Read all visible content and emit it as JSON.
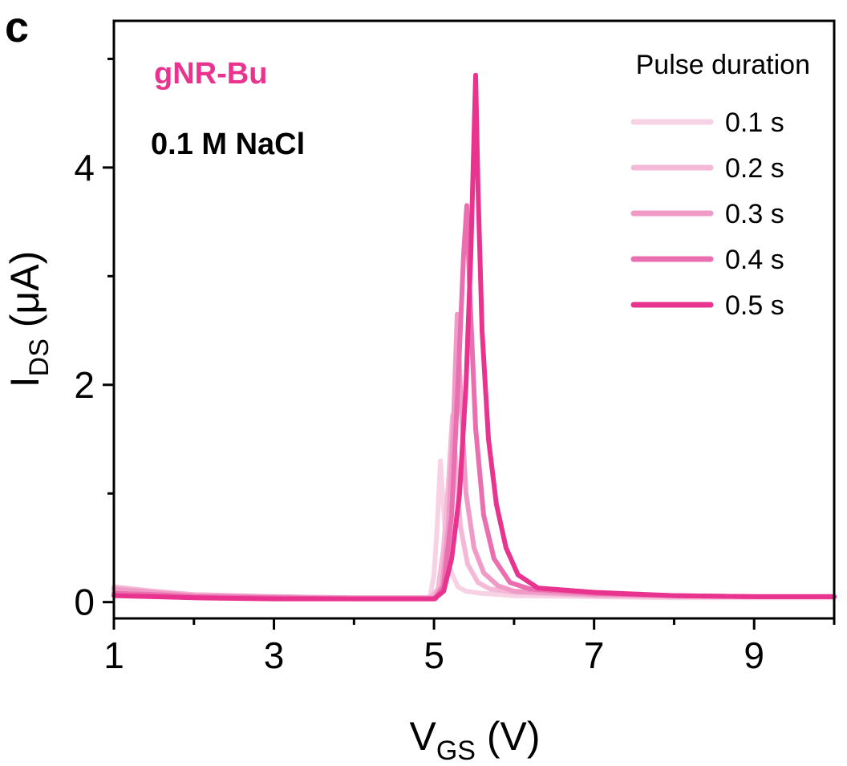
{
  "panel_label": "c",
  "annotations": {
    "material": "gNR-Bu",
    "condition": "0.1 M NaCl"
  },
  "colors": {
    "material_text": "#e8348f",
    "axes": "#000000"
  },
  "chart_data": {
    "type": "line",
    "title": "",
    "xlabel_main": "V",
    "xlabel_sub": "GS",
    "xlabel_unit": " (V)",
    "ylabel_main": "I",
    "ylabel_sub": "DS",
    "ylabel_unit": " (μA)",
    "xlim": [
      1,
      10
    ],
    "ylim": [
      -0.15,
      5.35
    ],
    "x_ticks": [
      1,
      3,
      5,
      7,
      9
    ],
    "x_tick_labels": [
      "1",
      "3",
      "5",
      "7",
      "9"
    ],
    "x_minor_ticks": [
      2,
      4,
      6,
      8,
      10
    ],
    "y_ticks": [
      0,
      2,
      4
    ],
    "y_tick_labels": [
      "0",
      "2",
      "4"
    ],
    "y_minor_ticks": [
      1,
      3,
      5
    ],
    "grid": false,
    "legend_title": "Pulse duration",
    "legend_position": "top-right",
    "series": [
      {
        "name": "0.1 s",
        "color": "#f7d2e4",
        "points": [
          [
            1,
            0.1
          ],
          [
            1.5,
            0.08
          ],
          [
            2,
            0.06
          ],
          [
            3,
            0.04
          ],
          [
            4,
            0.03
          ],
          [
            4.85,
            0.03
          ],
          [
            4.95,
            0.05
          ],
          [
            5.0,
            0.25
          ],
          [
            5.04,
            0.7
          ],
          [
            5.08,
            1.3
          ],
          [
            5.11,
            0.95
          ],
          [
            5.15,
            0.55
          ],
          [
            5.2,
            0.3
          ],
          [
            5.3,
            0.14
          ],
          [
            5.4,
            0.1
          ],
          [
            5.6,
            0.08
          ],
          [
            6,
            0.06
          ],
          [
            7,
            0.05
          ],
          [
            8,
            0.04
          ],
          [
            9,
            0.04
          ],
          [
            10,
            0.04
          ]
        ]
      },
      {
        "name": "0.2 s",
        "color": "#f5b9d8",
        "points": [
          [
            1,
            0.14
          ],
          [
            1.5,
            0.1
          ],
          [
            2,
            0.07
          ],
          [
            3,
            0.05
          ],
          [
            4,
            0.04
          ],
          [
            4.95,
            0.04
          ],
          [
            5.05,
            0.12
          ],
          [
            5.12,
            0.5
          ],
          [
            5.18,
            1.1
          ],
          [
            5.23,
            1.72
          ],
          [
            5.27,
            1.3
          ],
          [
            5.33,
            0.7
          ],
          [
            5.42,
            0.35
          ],
          [
            5.55,
            0.18
          ],
          [
            5.7,
            0.12
          ],
          [
            6,
            0.09
          ],
          [
            7,
            0.06
          ],
          [
            8,
            0.05
          ],
          [
            9,
            0.05
          ],
          [
            10,
            0.05
          ]
        ]
      },
      {
        "name": "0.3 s",
        "color": "#f09ac8",
        "points": [
          [
            1,
            0.12
          ],
          [
            1.5,
            0.09
          ],
          [
            2,
            0.06
          ],
          [
            3,
            0.05
          ],
          [
            4,
            0.04
          ],
          [
            5.0,
            0.04
          ],
          [
            5.1,
            0.15
          ],
          [
            5.18,
            0.7
          ],
          [
            5.24,
            1.6
          ],
          [
            5.29,
            2.65
          ],
          [
            5.34,
            1.8
          ],
          [
            5.4,
            1.0
          ],
          [
            5.5,
            0.5
          ],
          [
            5.62,
            0.27
          ],
          [
            5.8,
            0.15
          ],
          [
            6,
            0.1
          ],
          [
            7,
            0.07
          ],
          [
            8,
            0.06
          ],
          [
            9,
            0.05
          ],
          [
            10,
            0.05
          ]
        ]
      },
      {
        "name": "0.4 s",
        "color": "#ea6fb0",
        "points": [
          [
            1,
            0.08
          ],
          [
            1.5,
            0.07
          ],
          [
            2,
            0.05
          ],
          [
            3,
            0.04
          ],
          [
            4,
            0.03
          ],
          [
            5.02,
            0.03
          ],
          [
            5.12,
            0.15
          ],
          [
            5.22,
            0.8
          ],
          [
            5.3,
            2.0
          ],
          [
            5.37,
            3.2
          ],
          [
            5.41,
            3.65
          ],
          [
            5.45,
            2.8
          ],
          [
            5.52,
            1.6
          ],
          [
            5.62,
            0.8
          ],
          [
            5.75,
            0.4
          ],
          [
            5.95,
            0.18
          ],
          [
            6.2,
            0.12
          ],
          [
            7,
            0.08
          ],
          [
            8,
            0.06
          ],
          [
            9,
            0.05
          ],
          [
            10,
            0.05
          ]
        ]
      },
      {
        "name": "0.5 s",
        "color": "#e8348f",
        "points": [
          [
            1,
            0.06
          ],
          [
            1.5,
            0.05
          ],
          [
            2,
            0.04
          ],
          [
            3,
            0.03
          ],
          [
            4,
            0.03
          ],
          [
            5.0,
            0.03
          ],
          [
            5.12,
            0.1
          ],
          [
            5.22,
            0.4
          ],
          [
            5.32,
            1.0
          ],
          [
            5.4,
            2.0
          ],
          [
            5.46,
            3.2
          ],
          [
            5.5,
            4.3
          ],
          [
            5.52,
            4.85
          ],
          [
            5.55,
            3.8
          ],
          [
            5.6,
            2.5
          ],
          [
            5.68,
            1.5
          ],
          [
            5.78,
            0.9
          ],
          [
            5.9,
            0.5
          ],
          [
            6.05,
            0.25
          ],
          [
            6.3,
            0.13
          ],
          [
            7,
            0.09
          ],
          [
            8,
            0.06
          ],
          [
            9,
            0.05
          ],
          [
            10,
            0.05
          ]
        ]
      }
    ]
  }
}
